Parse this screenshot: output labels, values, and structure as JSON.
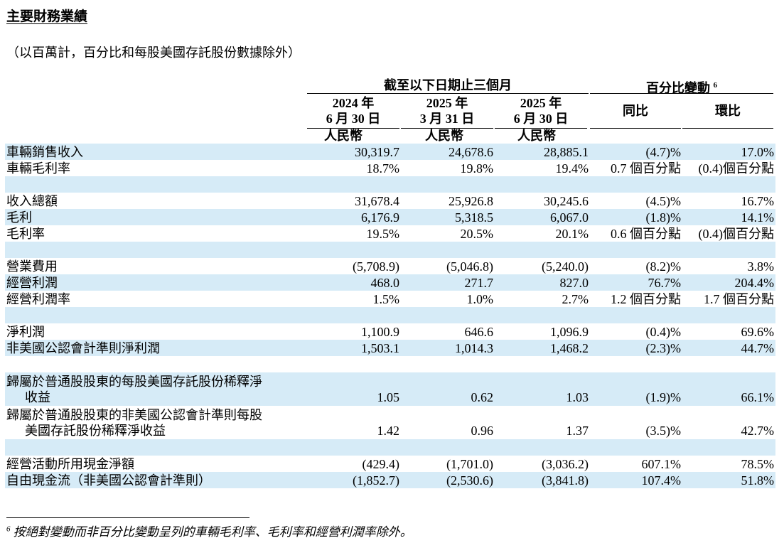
{
  "title": "主要財務業績",
  "subtitle": "（以百萬計，百分比和每股美國存託股份數據除外）",
  "header": {
    "group_period": "截至以下日期止三個月",
    "group_change": "百分比變動",
    "group_change_sup": "6",
    "columns": [
      {
        "year": "2024 年",
        "date": "6 月 30 日",
        "currency": "人民幣"
      },
      {
        "year": "2025 年",
        "date": "3 月 31 日",
        "currency": "人民幣"
      },
      {
        "year": "2025 年",
        "date": "6 月 30 日",
        "currency": "人民幣"
      }
    ],
    "yoy": "同比",
    "qoq": "環比"
  },
  "rows": [
    {
      "label": "車輛銷售收入",
      "v1": "30,319.7",
      "v2": "24,678.6",
      "v3": "28,885.1",
      "yoy": "(4.7)%",
      "qoq": "17.0%"
    },
    {
      "label": "車輛毛利率",
      "v1": "18.7%",
      "v2": "19.8%",
      "v3": "19.4%",
      "yoy": "0.7 個百分點",
      "qoq": "(0.4)個百分點"
    },
    {
      "label": "收入總額",
      "v1": "31,678.4",
      "v2": "25,926.8",
      "v3": "30,245.6",
      "yoy": "(4.5)%",
      "qoq": "16.7%"
    },
    {
      "label": "毛利",
      "v1": "6,176.9",
      "v2": "5,318.5",
      "v3": "6,067.0",
      "yoy": "(1.8)%",
      "qoq": "14.1%"
    },
    {
      "label": "毛利率",
      "v1": "19.5%",
      "v2": "20.5%",
      "v3": "20.1%",
      "yoy": "0.6 個百分點",
      "qoq": "(0.4)個百分點"
    },
    {
      "label": "營業費用",
      "v1": "(5,708.9)",
      "v2": "(5,046.8)",
      "v3": "(5,240.0)",
      "yoy": "(8.2)%",
      "qoq": "3.8%"
    },
    {
      "label": "經營利潤",
      "v1": "468.0",
      "v2": "271.7",
      "v3": "827.0",
      "yoy": "76.7%",
      "qoq": "204.4%"
    },
    {
      "label": "經營利潤率",
      "v1": "1.5%",
      "v2": "1.0%",
      "v3": "2.7%",
      "yoy": "1.2 個百分點",
      "qoq": "1.7 個百分點"
    },
    {
      "label": "淨利潤",
      "v1": "1,100.9",
      "v2": "646.6",
      "v3": "1,096.9",
      "yoy": "(0.4)%",
      "qoq": "69.6%"
    },
    {
      "label": "非美國公認會計準則淨利潤",
      "v1": "1,503.1",
      "v2": "1,014.3",
      "v3": "1,468.2",
      "yoy": "(2.3)%",
      "qoq": "44.7%"
    },
    {
      "label1": "歸屬於普通股股東的每股美國存託股份稀釋淨",
      "label2": "收益",
      "v1": "1.05",
      "v2": "0.62",
      "v3": "1.03",
      "yoy": "(1.9)%",
      "qoq": "66.1%"
    },
    {
      "label1": "歸屬於普通股股東的非美國公認會計準則每股",
      "label2": "美國存託股份稀釋淨收益",
      "v1": "1.42",
      "v2": "0.96",
      "v3": "1.37",
      "yoy": "(3.5)%",
      "qoq": "42.7%"
    },
    {
      "label": "經營活動所用現金淨額",
      "v1": "(429.4)",
      "v2": "(1,701.0)",
      "v3": "(3,036.2)",
      "yoy": "607.1%",
      "qoq": "78.5%"
    },
    {
      "label": "自由現金流（非美國公認會計準則）",
      "v1": "(1,852.7)",
      "v2": "(2,530.6)",
      "v3": "(3,841.8)",
      "yoy": "107.4%",
      "qoq": "51.8%"
    }
  ],
  "footnote": {
    "marker": "6",
    "text": "按絕對變動而非百分比變動呈列的車輛毛利率、毛利率和經營利潤率除外。"
  }
}
